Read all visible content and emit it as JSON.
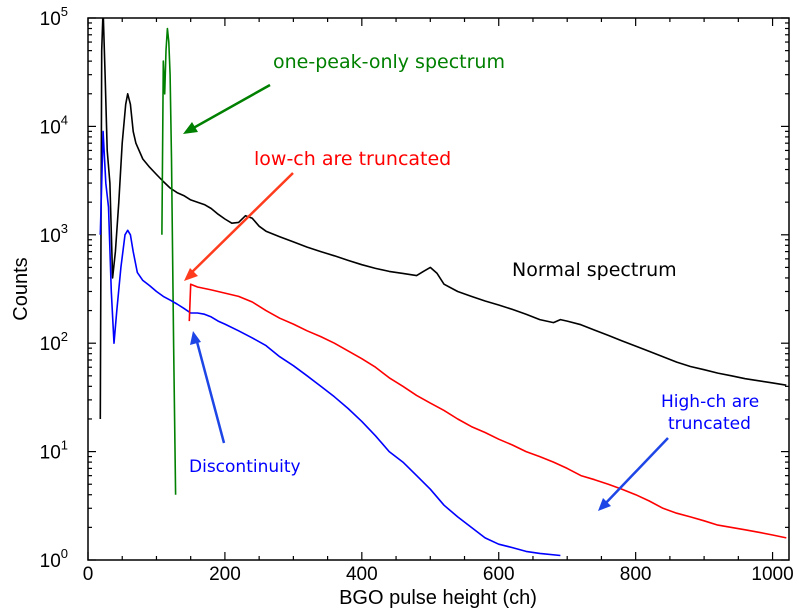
{
  "chart_data": {
    "type": "line",
    "xlabel": "BGO pulse height (ch)",
    "ylabel": "Counts",
    "xlim": [
      0,
      1024
    ],
    "ylim": [
      1,
      100000
    ],
    "yscale": "log",
    "x_ticks": [
      0,
      200,
      400,
      600,
      800,
      1000
    ],
    "x_tick_labels": [
      "0",
      "200",
      "400",
      "600",
      "800",
      "1000"
    ],
    "y_ticks": [
      {
        "value": 1,
        "base": "10",
        "exp": "0"
      },
      {
        "value": 10,
        "base": "10",
        "exp": "1"
      },
      {
        "value": 100,
        "base": "10",
        "exp": "2"
      },
      {
        "value": 1000,
        "base": "10",
        "exp": "3"
      },
      {
        "value": 10000,
        "base": "10",
        "exp": "4"
      },
      {
        "value": 100000,
        "base": "10",
        "exp": "5"
      }
    ],
    "grid": false,
    "series": [
      {
        "color": "#000000",
        "points": [
          [
            18,
            20
          ],
          [
            20,
            50000
          ],
          [
            22,
            120000
          ],
          [
            25,
            30000
          ],
          [
            28,
            6000
          ],
          [
            32,
            3000
          ],
          [
            36,
            400
          ],
          [
            40,
            700
          ],
          [
            45,
            2000
          ],
          [
            50,
            7000
          ],
          [
            55,
            16000
          ],
          [
            58,
            20000
          ],
          [
            62,
            16000
          ],
          [
            66,
            9000
          ],
          [
            70,
            7000
          ],
          [
            80,
            5000
          ],
          [
            90,
            4200
          ],
          [
            100,
            3600
          ],
          [
            110,
            3100
          ],
          [
            120,
            2700
          ],
          [
            130,
            2450
          ],
          [
            140,
            2300
          ],
          [
            150,
            2100
          ],
          [
            160,
            2000
          ],
          [
            170,
            1900
          ],
          [
            180,
            1750
          ],
          [
            190,
            1550
          ],
          [
            200,
            1400
          ],
          [
            210,
            1280
          ],
          [
            220,
            1300
          ],
          [
            230,
            1500
          ],
          [
            240,
            1420
          ],
          [
            250,
            1200
          ],
          [
            260,
            1080
          ],
          [
            280,
            960
          ],
          [
            300,
            860
          ],
          [
            320,
            770
          ],
          [
            340,
            700
          ],
          [
            360,
            640
          ],
          [
            380,
            580
          ],
          [
            400,
            530
          ],
          [
            420,
            490
          ],
          [
            440,
            460
          ],
          [
            460,
            440
          ],
          [
            480,
            420
          ],
          [
            490,
            460
          ],
          [
            500,
            500
          ],
          [
            510,
            440
          ],
          [
            520,
            350
          ],
          [
            540,
            300
          ],
          [
            560,
            270
          ],
          [
            580,
            245
          ],
          [
            600,
            225
          ],
          [
            620,
            205
          ],
          [
            640,
            185
          ],
          [
            660,
            165
          ],
          [
            680,
            155
          ],
          [
            690,
            165
          ],
          [
            700,
            160
          ],
          [
            720,
            148
          ],
          [
            740,
            132
          ],
          [
            760,
            118
          ],
          [
            780,
            105
          ],
          [
            800,
            94
          ],
          [
            820,
            84
          ],
          [
            840,
            75
          ],
          [
            860,
            67
          ],
          [
            880,
            61
          ],
          [
            900,
            57
          ],
          [
            920,
            53
          ],
          [
            940,
            50
          ],
          [
            960,
            47
          ],
          [
            980,
            45
          ],
          [
            1000,
            43
          ],
          [
            1020,
            41
          ]
        ]
      },
      {
        "color": "#008000",
        "points": [
          [
            108,
            1000
          ],
          [
            110,
            40000
          ],
          [
            112,
            20000
          ],
          [
            114,
            50000
          ],
          [
            116,
            80000
          ],
          [
            118,
            60000
          ],
          [
            120,
            30000
          ],
          [
            122,
            5000
          ],
          [
            125,
            100
          ],
          [
            128,
            4
          ]
        ]
      },
      {
        "color": "#0000ff",
        "points": [
          [
            18,
            1000
          ],
          [
            22,
            9000
          ],
          [
            26,
            3000
          ],
          [
            30,
            1800
          ],
          [
            34,
            300
          ],
          [
            38,
            100
          ],
          [
            42,
            200
          ],
          [
            48,
            500
          ],
          [
            54,
            1000
          ],
          [
            58,
            1100
          ],
          [
            62,
            1000
          ],
          [
            66,
            700
          ],
          [
            72,
            450
          ],
          [
            80,
            380
          ],
          [
            90,
            340
          ],
          [
            100,
            300
          ],
          [
            110,
            270
          ],
          [
            120,
            250
          ],
          [
            130,
            230
          ],
          [
            140,
            210
          ],
          [
            150,
            190
          ],
          [
            160,
            190
          ],
          [
            170,
            185
          ],
          [
            180,
            175
          ],
          [
            190,
            160
          ],
          [
            200,
            150
          ],
          [
            220,
            130
          ],
          [
            240,
            112
          ],
          [
            260,
            95
          ],
          [
            280,
            75
          ],
          [
            300,
            62
          ],
          [
            320,
            50
          ],
          [
            340,
            40
          ],
          [
            360,
            32
          ],
          [
            380,
            25
          ],
          [
            400,
            19
          ],
          [
            420,
            14
          ],
          [
            440,
            10
          ],
          [
            460,
            8
          ],
          [
            480,
            6
          ],
          [
            500,
            4.5
          ],
          [
            520,
            3.2
          ],
          [
            540,
            2.5
          ],
          [
            560,
            2
          ],
          [
            580,
            1.6
          ],
          [
            600,
            1.4
          ],
          [
            620,
            1.3
          ],
          [
            640,
            1.2
          ],
          [
            660,
            1.15
          ],
          [
            690,
            1.1
          ]
        ]
      },
      {
        "color": "#ff0000",
        "points": [
          [
            148,
            160
          ],
          [
            150,
            350
          ],
          [
            160,
            330
          ],
          [
            180,
            310
          ],
          [
            200,
            290
          ],
          [
            220,
            270
          ],
          [
            240,
            240
          ],
          [
            260,
            200
          ],
          [
            280,
            170
          ],
          [
            300,
            150
          ],
          [
            320,
            130
          ],
          [
            340,
            115
          ],
          [
            360,
            100
          ],
          [
            380,
            85
          ],
          [
            400,
            72
          ],
          [
            420,
            60
          ],
          [
            440,
            48
          ],
          [
            460,
            40
          ],
          [
            480,
            33
          ],
          [
            500,
            28
          ],
          [
            520,
            24
          ],
          [
            540,
            20
          ],
          [
            560,
            17
          ],
          [
            580,
            15
          ],
          [
            600,
            13
          ],
          [
            620,
            11.5
          ],
          [
            640,
            10
          ],
          [
            660,
            9
          ],
          [
            680,
            8
          ],
          [
            700,
            7
          ],
          [
            720,
            6
          ],
          [
            740,
            5.5
          ],
          [
            760,
            5
          ],
          [
            780,
            4.5
          ],
          [
            800,
            4
          ],
          [
            820,
            3.5
          ],
          [
            840,
            3
          ],
          [
            860,
            2.7
          ],
          [
            880,
            2.5
          ],
          [
            900,
            2.3
          ],
          [
            920,
            2.1
          ],
          [
            940,
            2
          ],
          [
            960,
            1.9
          ],
          [
            980,
            1.8
          ],
          [
            1000,
            1.7
          ],
          [
            1020,
            1.6
          ]
        ]
      }
    ],
    "annotations": [
      {
        "text": "one-peak-only spectrum",
        "color": "#008000"
      },
      {
        "text": "low-ch are truncated",
        "color": "#ff0000"
      },
      {
        "text": "Normal spectrum",
        "color": "#000000"
      },
      {
        "text": "Discontinuity",
        "color": "#0000ff"
      },
      {
        "text": "High-ch are",
        "color": "#0000ff"
      },
      {
        "text": "truncated",
        "color": "#0000ff"
      }
    ]
  }
}
